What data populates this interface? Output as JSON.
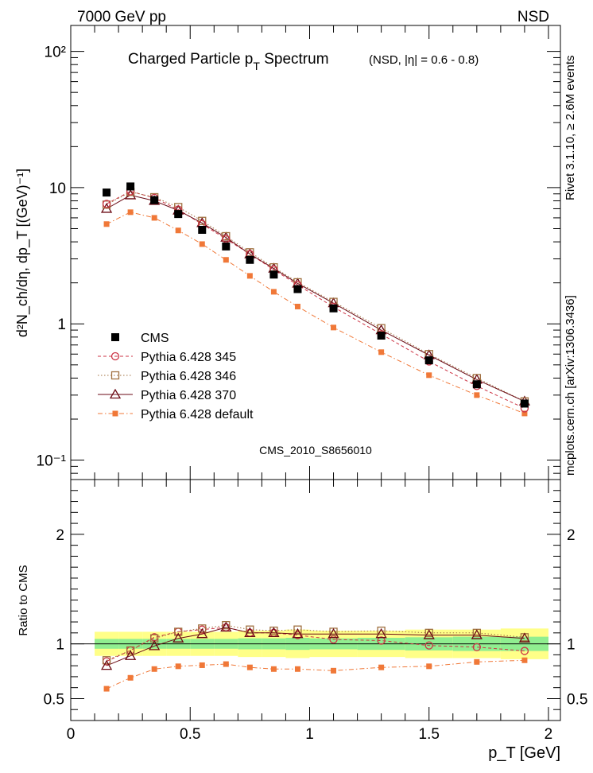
{
  "header": {
    "left": "7000 GeV pp",
    "right": "NSD"
  },
  "side_labels": {
    "rivet": "Rivet 3.1.10, ≥ 2.6M events",
    "mcplots": "mcplots.cern.ch [arXiv:1306.3436]"
  },
  "chart_data": [
    {
      "type": "scatter",
      "panel": "main",
      "title": "Charged Particle p_T Spectrum",
      "title_note": "(NSD, |η| = 0.6 - 0.8)",
      "ylabel": "d²N_ch/dη, dp_T [(GeV)⁻¹]",
      "yscale": "log",
      "xlim": [
        0,
        2.05
      ],
      "ylim": [
        0.072,
        155
      ],
      "yticks": [
        "10⁻¹",
        "1",
        "10",
        "10²"
      ],
      "watermark": "CMS_2010_S8656010",
      "legend_position": "left",
      "series": [
        {
          "name": "CMS",
          "color": "#000000",
          "marker": "filled-square",
          "line": "none",
          "x": [
            0.15,
            0.25,
            0.35,
            0.45,
            0.55,
            0.65,
            0.75,
            0.85,
            0.95,
            1.1,
            1.3,
            1.5,
            1.7,
            1.9
          ],
          "y": [
            9.2,
            10.2,
            8.1,
            6.4,
            4.9,
            3.7,
            2.95,
            2.3,
            1.8,
            1.3,
            0.82,
            0.54,
            0.36,
            0.26
          ]
        },
        {
          "name": "Pythia 6.428 345",
          "color": "#cc3344",
          "marker": "open-circle",
          "line": "dashed",
          "x": [
            0.15,
            0.25,
            0.35,
            0.45,
            0.55,
            0.65,
            0.75,
            0.85,
            0.95,
            1.1,
            1.3,
            1.5,
            1.7,
            1.9
          ],
          "y": [
            7.6,
            9.4,
            8.4,
            6.9,
            5.4,
            4.2,
            3.25,
            2.5,
            1.93,
            1.33,
            0.84,
            0.53,
            0.35,
            0.24
          ]
        },
        {
          "name": "Pythia 6.428 346",
          "color": "#a07040",
          "marker": "open-square",
          "line": "dotted",
          "x": [
            0.15,
            0.25,
            0.35,
            0.45,
            0.55,
            0.65,
            0.75,
            0.85,
            0.95,
            1.1,
            1.3,
            1.5,
            1.7,
            1.9
          ],
          "y": [
            7.5,
            9.3,
            8.5,
            7.2,
            5.7,
            4.4,
            3.35,
            2.6,
            2.02,
            1.45,
            0.93,
            0.6,
            0.4,
            0.27
          ]
        },
        {
          "name": "Pythia 6.428 370",
          "color": "#6b0a14",
          "marker": "open-triangle",
          "line": "solid",
          "x": [
            0.15,
            0.25,
            0.35,
            0.45,
            0.55,
            0.65,
            0.75,
            0.85,
            0.95,
            1.1,
            1.3,
            1.5,
            1.7,
            1.9
          ],
          "y": [
            7.0,
            8.8,
            8.0,
            6.8,
            5.5,
            4.3,
            3.25,
            2.55,
            1.98,
            1.42,
            0.9,
            0.59,
            0.39,
            0.27
          ]
        },
        {
          "name": "Pythia 6.428 default",
          "color": "#f07838",
          "marker": "small-filled-square",
          "line": "dashdot",
          "x": [
            0.15,
            0.25,
            0.35,
            0.45,
            0.55,
            0.65,
            0.75,
            0.85,
            0.95,
            1.1,
            1.3,
            1.5,
            1.7,
            1.9
          ],
          "y": [
            5.4,
            6.6,
            6.0,
            4.85,
            3.85,
            2.95,
            2.25,
            1.72,
            1.34,
            0.94,
            0.62,
            0.42,
            0.3,
            0.22
          ]
        }
      ]
    },
    {
      "type": "line",
      "panel": "ratio",
      "ylabel": "Ratio to CMS",
      "xlabel": "p_T [GeV]",
      "xlim": [
        0,
        2.05
      ],
      "ylim": [
        0.3,
        2.5
      ],
      "xticks": [
        "0",
        "0.5",
        "1",
        "1.5",
        "2"
      ],
      "yticks": [
        "0.5",
        "1",
        "2"
      ],
      "band": {
        "x_edges": [
          0.1,
          0.2,
          0.3,
          0.4,
          0.5,
          0.6,
          0.7,
          0.8,
          0.9,
          1.0,
          1.2,
          1.4,
          1.6,
          1.8,
          2.0
        ],
        "inner": [
          0.045,
          0.045,
          0.045,
          0.045,
          0.045,
          0.045,
          0.05,
          0.05,
          0.055,
          0.05,
          0.055,
          0.06,
          0.065,
          0.065
        ],
        "outer": [
          0.11,
          0.11,
          0.11,
          0.11,
          0.11,
          0.11,
          0.12,
          0.12,
          0.13,
          0.12,
          0.12,
          0.13,
          0.13,
          0.14
        ],
        "inner_color": "#90ee90",
        "outer_color": "#ffff88"
      },
      "series": [
        {
          "name": "Pythia 6.428 345",
          "color": "#cc3344",
          "x": [
            0.15,
            0.25,
            0.35,
            0.45,
            0.55,
            0.65,
            0.75,
            0.85,
            0.95,
            1.1,
            1.3,
            1.5,
            1.7,
            1.9
          ],
          "y": [
            0.84,
            0.94,
            1.06,
            1.11,
            1.13,
            1.15,
            1.1,
            1.1,
            1.08,
            1.04,
            1.03,
            0.985,
            0.97,
            0.935
          ]
        },
        {
          "name": "Pythia 6.428 346",
          "color": "#a07040",
          "x": [
            0.15,
            0.25,
            0.35,
            0.45,
            0.55,
            0.65,
            0.75,
            0.85,
            0.95,
            1.1,
            1.3,
            1.5,
            1.7,
            1.9
          ],
          "y": [
            0.85,
            0.94,
            1.05,
            1.11,
            1.14,
            1.17,
            1.13,
            1.12,
            1.13,
            1.11,
            1.12,
            1.1,
            1.1,
            1.06
          ]
        },
        {
          "name": "Pythia 6.428 370",
          "color": "#6b0a14",
          "x": [
            0.15,
            0.25,
            0.35,
            0.45,
            0.55,
            0.65,
            0.75,
            0.85,
            0.95,
            1.1,
            1.3,
            1.5,
            1.7,
            1.9
          ],
          "y": [
            0.8,
            0.89,
            0.98,
            1.05,
            1.09,
            1.15,
            1.1,
            1.1,
            1.09,
            1.09,
            1.09,
            1.08,
            1.08,
            1.05
          ]
        },
        {
          "name": "Pythia 6.428 default",
          "color": "#f07838",
          "x": [
            0.15,
            0.25,
            0.35,
            0.45,
            0.55,
            0.65,
            0.75,
            0.85,
            0.95,
            1.1,
            1.3,
            1.5,
            1.7,
            1.9
          ],
          "y": [
            0.59,
            0.69,
            0.77,
            0.795,
            0.805,
            0.815,
            0.785,
            0.77,
            0.77,
            0.755,
            0.785,
            0.795,
            0.835,
            0.85
          ]
        }
      ]
    }
  ]
}
